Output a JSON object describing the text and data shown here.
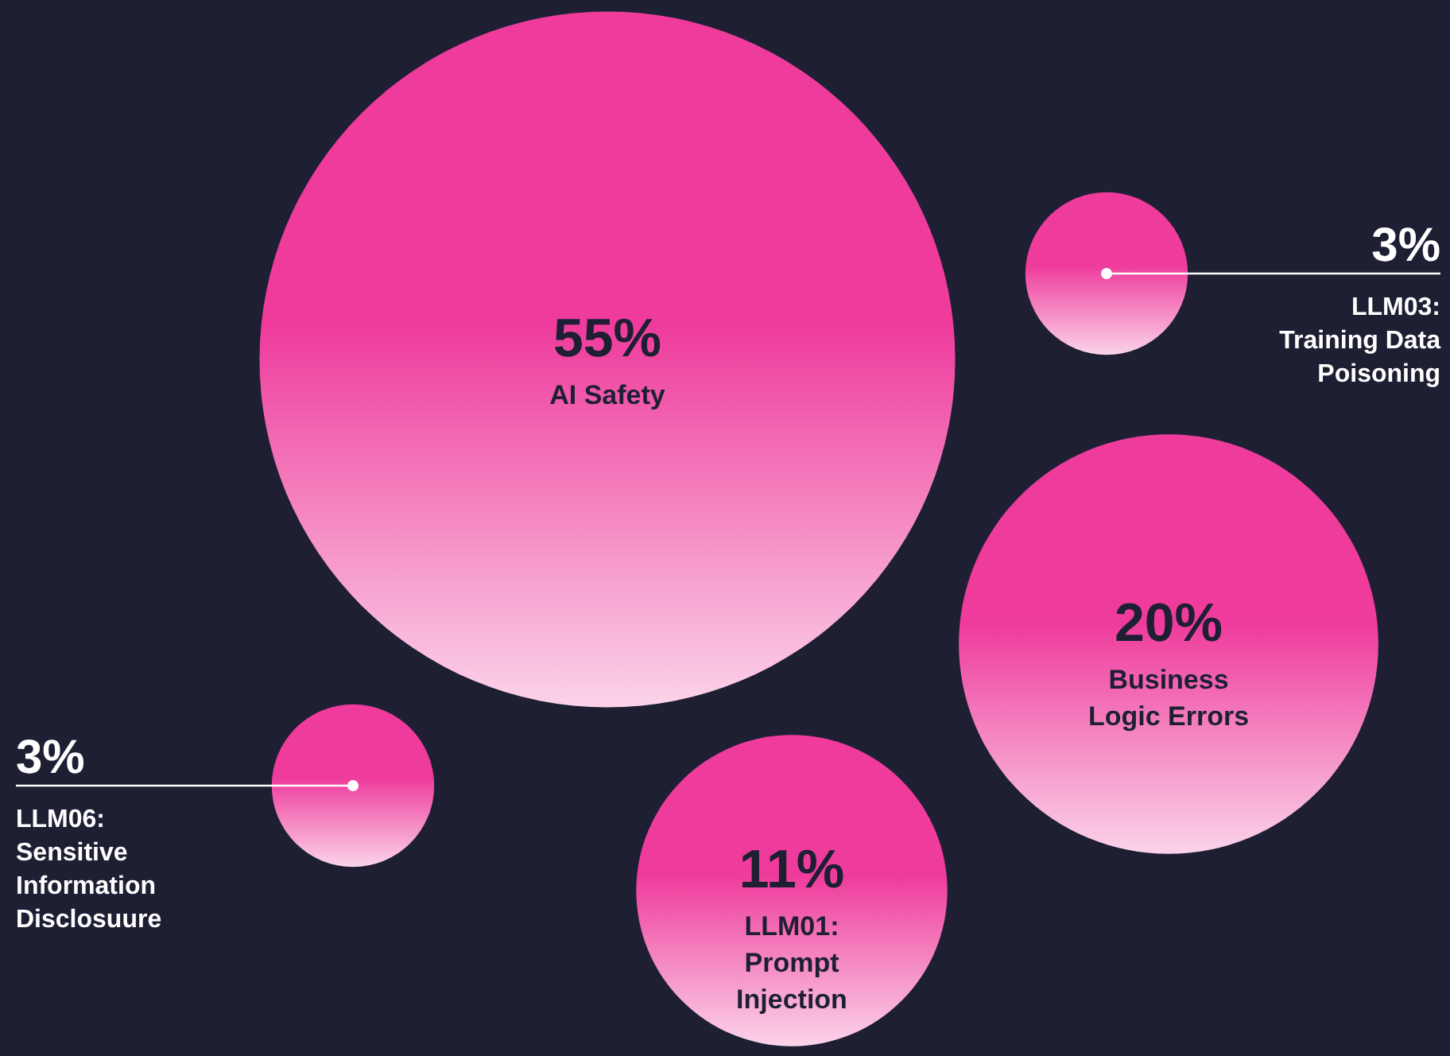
{
  "chart_data": {
    "type": "other",
    "categories": [
      "AI Safety",
      "LLM03: Training Data Poisoning",
      "Business Logic Errors",
      "LLM01: Prompt Injection",
      "LLM06: Sensitive Information Disclosuure"
    ],
    "values": [
      55,
      3,
      20,
      11,
      3
    ],
    "value_labels": [
      "55%",
      "3%",
      "20%",
      "11%",
      "3%"
    ],
    "colors": [
      "#ee3b9c",
      "#ee3b9c",
      "#ee3b9c",
      "#ee3b9c",
      "#ee3b9c"
    ]
  }
}
